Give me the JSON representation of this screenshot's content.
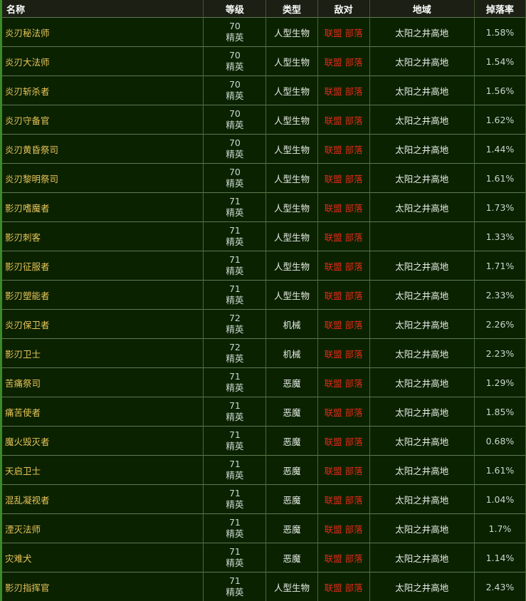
{
  "headers": {
    "name": "名称",
    "level": "等级",
    "type": "类型",
    "hostile": "敌对",
    "region": "地域",
    "drop": "掉落率"
  },
  "rows": [
    {
      "name": "炎刃秘法师",
      "level": "70",
      "rank": "精英",
      "type": "人型生物",
      "hostile": "联盟 部落",
      "region": "太阳之井高地",
      "drop": "1.58%"
    },
    {
      "name": "炎刃大法师",
      "level": "70",
      "rank": "精英",
      "type": "人型生物",
      "hostile": "联盟 部落",
      "region": "太阳之井高地",
      "drop": "1.54%"
    },
    {
      "name": "炎刃斩杀者",
      "level": "70",
      "rank": "精英",
      "type": "人型生物",
      "hostile": "联盟 部落",
      "region": "太阳之井高地",
      "drop": "1.56%"
    },
    {
      "name": "炎刃守备官",
      "level": "70",
      "rank": "精英",
      "type": "人型生物",
      "hostile": "联盟 部落",
      "region": "太阳之井高地",
      "drop": "1.62%"
    },
    {
      "name": "炎刃黄昏祭司",
      "level": "70",
      "rank": "精英",
      "type": "人型生物",
      "hostile": "联盟 部落",
      "region": "太阳之井高地",
      "drop": "1.44%"
    },
    {
      "name": "炎刃黎明祭司",
      "level": "70",
      "rank": "精英",
      "type": "人型生物",
      "hostile": "联盟 部落",
      "region": "太阳之井高地",
      "drop": "1.61%"
    },
    {
      "name": "影刃嗜魔者",
      "level": "71",
      "rank": "精英",
      "type": "人型生物",
      "hostile": "联盟 部落",
      "region": "太阳之井高地",
      "drop": "1.73%"
    },
    {
      "name": "影刃刺客",
      "level": "71",
      "rank": "精英",
      "type": "人型生物",
      "hostile": "联盟 部落",
      "region": "",
      "drop": "1.33%"
    },
    {
      "name": "影刃征服者",
      "level": "71",
      "rank": "精英",
      "type": "人型生物",
      "hostile": "联盟 部落",
      "region": "太阳之井高地",
      "drop": "1.71%"
    },
    {
      "name": "影刃塑能者",
      "level": "71",
      "rank": "精英",
      "type": "人型生物",
      "hostile": "联盟 部落",
      "region": "太阳之井高地",
      "drop": "2.33%"
    },
    {
      "name": "炎刃保卫者",
      "level": "72",
      "rank": "精英",
      "type": "机械",
      "hostile": "联盟 部落",
      "region": "太阳之井高地",
      "drop": "2.26%"
    },
    {
      "name": "影刃卫士",
      "level": "72",
      "rank": "精英",
      "type": "机械",
      "hostile": "联盟 部落",
      "region": "太阳之井高地",
      "drop": "2.23%"
    },
    {
      "name": "苦痛祭司",
      "level": "71",
      "rank": "精英",
      "type": "恶魔",
      "hostile": "联盟 部落",
      "region": "太阳之井高地",
      "drop": "1.29%"
    },
    {
      "name": "痛苦使者",
      "level": "71",
      "rank": "精英",
      "type": "恶魔",
      "hostile": "联盟 部落",
      "region": "太阳之井高地",
      "drop": "1.85%"
    },
    {
      "name": "魔火毁灭者",
      "level": "71",
      "rank": "精英",
      "type": "恶魔",
      "hostile": "联盟 部落",
      "region": "太阳之井高地",
      "drop": "0.68%"
    },
    {
      "name": "天启卫士",
      "level": "71",
      "rank": "精英",
      "type": "恶魔",
      "hostile": "联盟 部落",
      "region": "太阳之井高地",
      "drop": "1.61%"
    },
    {
      "name": "混乱凝视者",
      "level": "71",
      "rank": "精英",
      "type": "恶魔",
      "hostile": "联盟 部落",
      "region": "太阳之井高地",
      "drop": "1.04%"
    },
    {
      "name": "湮灭法师",
      "level": "71",
      "rank": "精英",
      "type": "恶魔",
      "hostile": "联盟 部落",
      "region": "太阳之井高地",
      "drop": "1.7%"
    },
    {
      "name": "灾难犬",
      "level": "71",
      "rank": "精英",
      "type": "恶魔",
      "hostile": "联盟 部落",
      "region": "太阳之井高地",
      "drop": "1.14%"
    },
    {
      "name": "影刃指挥官",
      "level": "71",
      "rank": "精英",
      "type": "人型生物",
      "hostile": "联盟 部落",
      "region": "太阳之井高地",
      "drop": "2.43%"
    }
  ]
}
